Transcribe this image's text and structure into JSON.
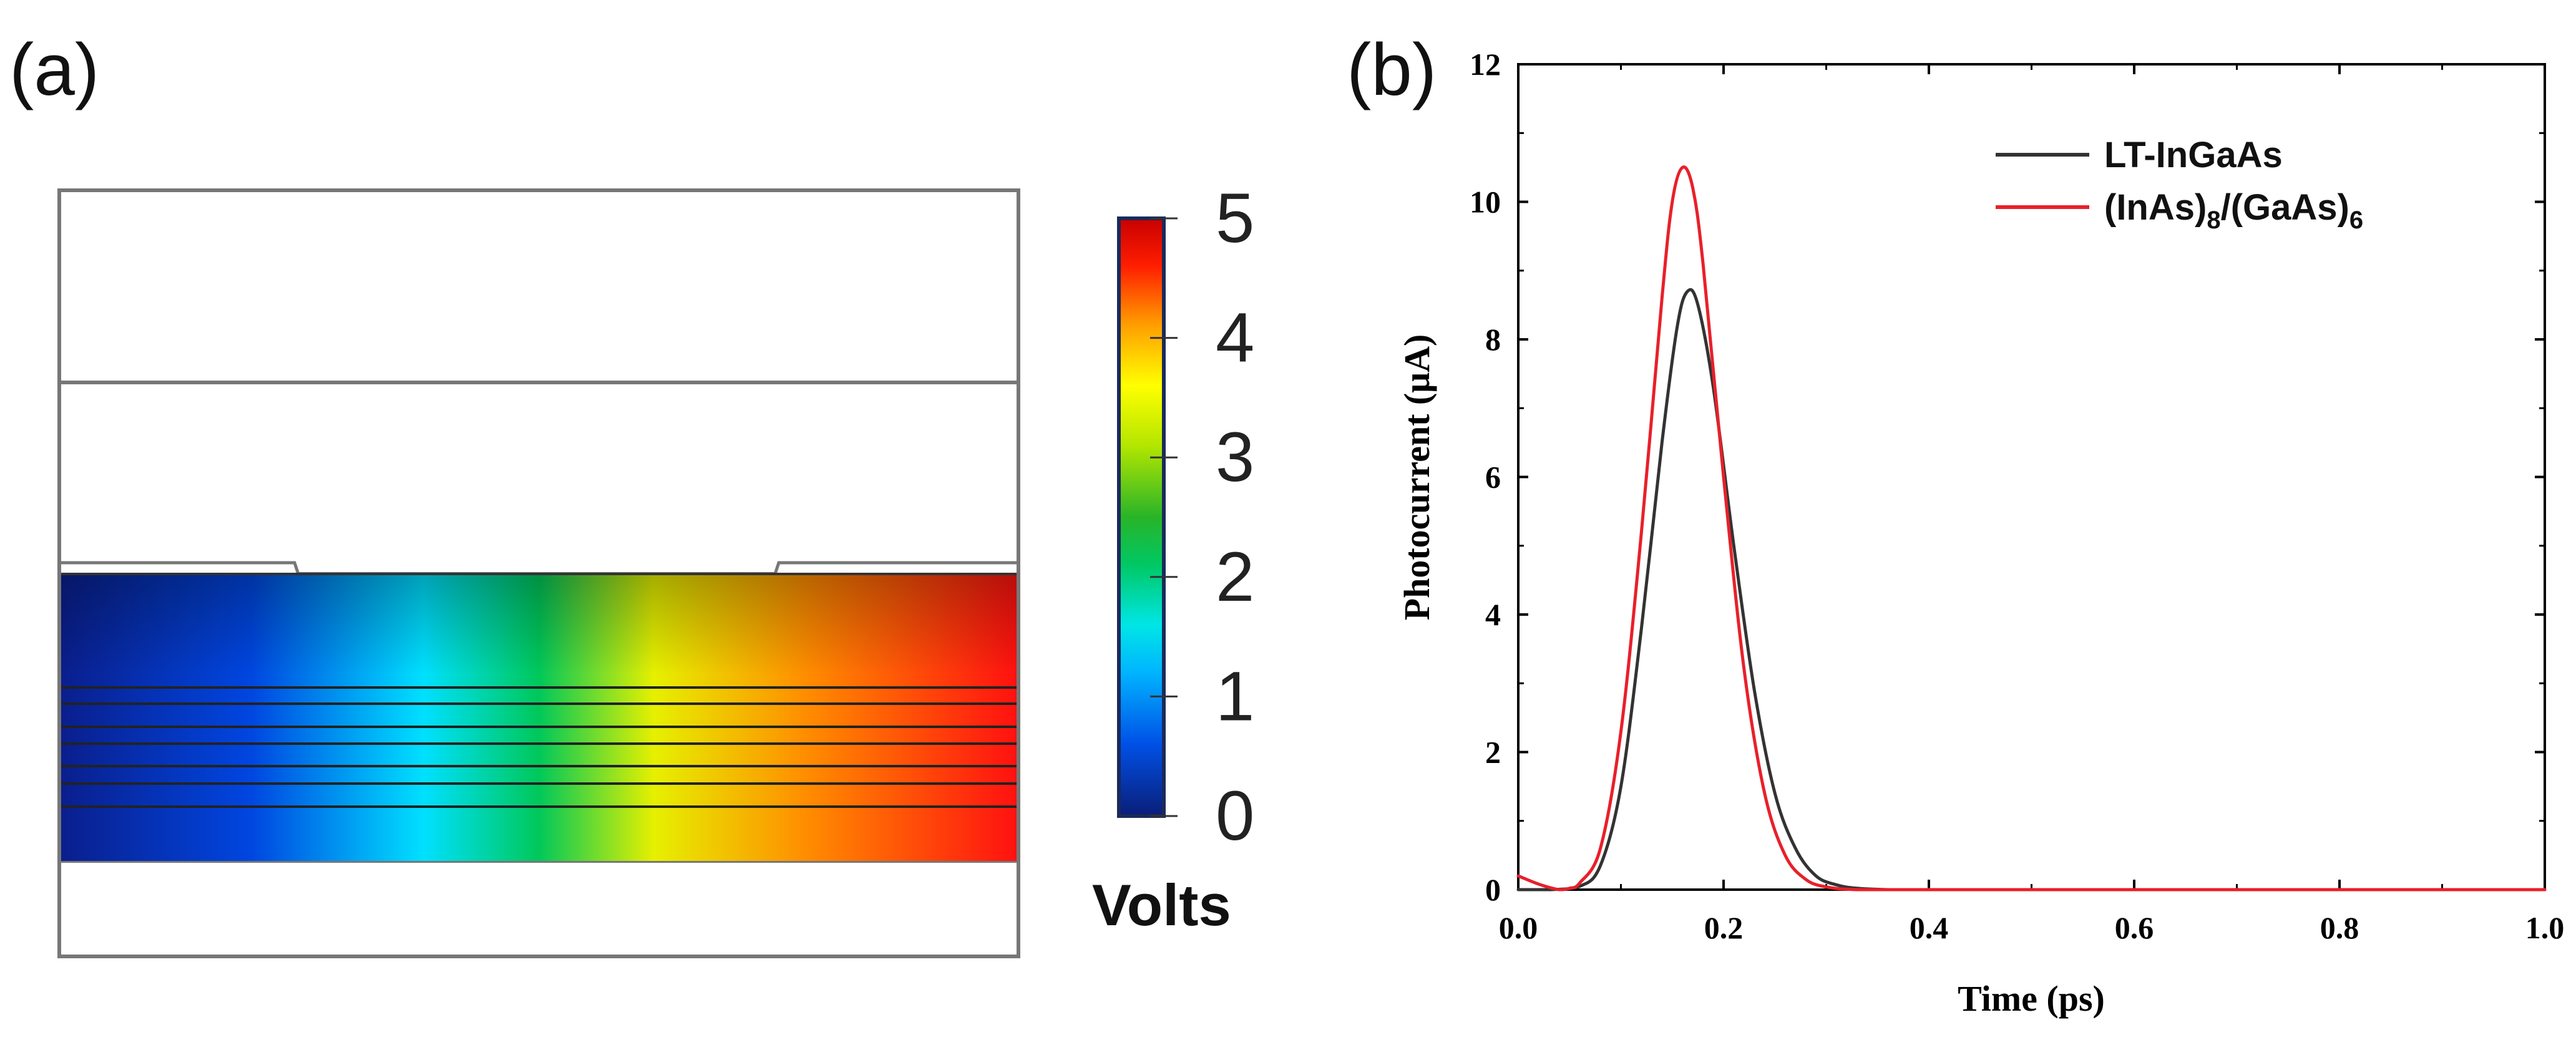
{
  "panel_a": {
    "label": "(a)",
    "colorbar": {
      "title": "Volts",
      "min": 0,
      "max": 5,
      "ticks": [
        "0",
        "1",
        "2",
        "3",
        "4",
        "5"
      ],
      "colormap": [
        "#0a1e78",
        "#0050e6",
        "#00b4ff",
        "#00ffff",
        "#1ec864",
        "#00c800",
        "#ffff00",
        "#ff8c00",
        "#ff0000",
        "#8c0000"
      ]
    }
  },
  "panel_b": {
    "label": "(b)"
  },
  "chart_data": {
    "type": "line",
    "xlabel": "Time (ps)",
    "ylabel": "Photocurrent (μA)",
    "xlim": [
      0.0,
      1.0
    ],
    "ylim": [
      0,
      12
    ],
    "xticks": [
      "0.0",
      "0.2",
      "0.4",
      "0.6",
      "0.8",
      "1.0"
    ],
    "yticks": [
      "0",
      "2",
      "4",
      "6",
      "8",
      "10",
      "12"
    ],
    "legend_position": "top-right",
    "series": [
      {
        "name": "LT-InGaAs",
        "color": "#333333",
        "x": [
          0.0,
          0.03,
          0.06,
          0.08,
          0.1,
          0.12,
          0.14,
          0.155,
          0.165,
          0.175,
          0.19,
          0.21,
          0.23,
          0.25,
          0.27,
          0.29,
          0.31,
          0.33,
          0.36,
          0.4,
          0.5,
          0.7,
          1.0
        ],
        "y": [
          0.0,
          0.0,
          0.05,
          0.35,
          1.5,
          3.8,
          6.5,
          8.2,
          8.7,
          8.5,
          7.3,
          5.0,
          2.9,
          1.4,
          0.6,
          0.2,
          0.07,
          0.02,
          0.0,
          0.0,
          0.0,
          0.0,
          0.0
        ]
      },
      {
        "name": "(InAs)8/(GaAs)6",
        "label_parts": [
          "(InAs)",
          "8",
          "/(GaAs)",
          "6"
        ],
        "color": "#e8202a",
        "x": [
          0.0,
          0.02,
          0.04,
          0.05,
          0.06,
          0.08,
          0.1,
          0.12,
          0.14,
          0.15,
          0.16,
          0.17,
          0.18,
          0.2,
          0.22,
          0.24,
          0.26,
          0.28,
          0.3,
          0.33,
          0.4,
          0.6,
          1.0
        ],
        "y": [
          0.2,
          0.08,
          0.0,
          0.02,
          0.1,
          0.6,
          2.3,
          5.2,
          8.6,
          10.0,
          10.5,
          10.2,
          9.1,
          6.0,
          3.2,
          1.4,
          0.5,
          0.15,
          0.04,
          0.0,
          0.0,
          0.0,
          0.0
        ]
      }
    ]
  }
}
